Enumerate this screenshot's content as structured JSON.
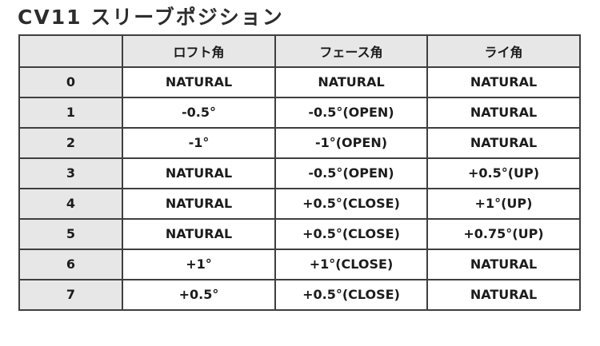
{
  "title": "CV11 スリーブポジション",
  "table": {
    "columns": [
      "",
      "ロフト角",
      "フェース角",
      "ライ角"
    ],
    "rows": [
      [
        "0",
        "NATURAL",
        "NATURAL",
        "NATURAL"
      ],
      [
        "1",
        "-0.5°",
        "-0.5°(OPEN)",
        "NATURAL"
      ],
      [
        "2",
        "-1°",
        "-1°(OPEN)",
        "NATURAL"
      ],
      [
        "3",
        "NATURAL",
        "-0.5°(OPEN)",
        "+0.5°(UP)"
      ],
      [
        "4",
        "NATURAL",
        "+0.5°(CLOSE)",
        "+1°(UP)"
      ],
      [
        "5",
        "NATURAL",
        "+0.5°(CLOSE)",
        "+0.75°(UP)"
      ],
      [
        "6",
        "+1°",
        "+1°(CLOSE)",
        "NATURAL"
      ],
      [
        "7",
        "+0.5°",
        "+0.5°(CLOSE)",
        "NATURAL"
      ]
    ]
  },
  "colors": {
    "header_background": "#e8e7e7",
    "row_label_background": "#e8e7e7",
    "border": "#3f3f3f",
    "outer_border": "#2b2b2b",
    "text": "#1c1c1c",
    "page_background": "#ffffff"
  }
}
